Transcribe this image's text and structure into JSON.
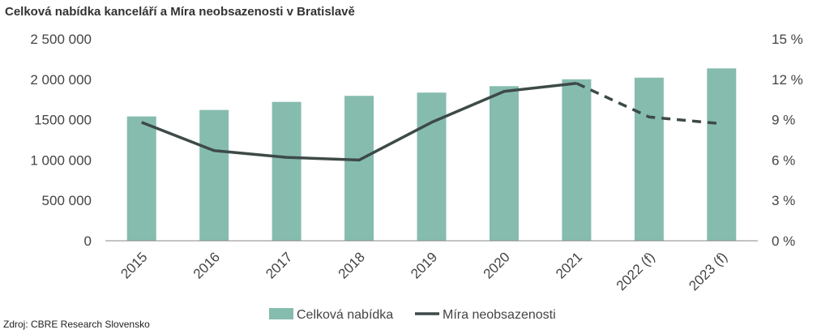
{
  "title": "Celková nabídka kanceláří a Míra neobsazenosti v Bratislavě",
  "source": "Zdroj: CBRE Research Slovensko",
  "colors": {
    "bar": "#86bcae",
    "line": "#3d4a48",
    "axis": "#888888"
  },
  "chart_data": {
    "type": "bar",
    "title": "Celková nabídka kanceláří a Míra neobsazenosti v Bratislavě",
    "categories": [
      "2015",
      "2016",
      "2017",
      "2018",
      "2019",
      "2020",
      "2021",
      "2022 (f)",
      "2023 (f)"
    ],
    "left_axis": {
      "ylim": [
        0,
        2500000
      ],
      "ticks": [
        "0",
        "500 000",
        "1 000 000",
        "1500 000",
        "2 000 000",
        "2 500 000"
      ]
    },
    "right_axis": {
      "ylim": [
        0,
        15
      ],
      "ticks": [
        "0 %",
        "3 %",
        "6 %",
        "9 %",
        "12 %",
        "15 %"
      ]
    },
    "series": [
      {
        "name": "Celková nabídka",
        "type": "bar",
        "axis": "left",
        "values": [
          1540000,
          1620000,
          1720000,
          1795000,
          1835000,
          1915000,
          2000000,
          2020000,
          2135000
        ]
      },
      {
        "name": "Míra neobsazenosti",
        "type": "line",
        "axis": "right",
        "values": [
          8.8,
          6.7,
          6.2,
          6.0,
          8.8,
          11.1,
          11.7,
          9.2,
          8.7
        ],
        "dashed_from_index": 6
      }
    ],
    "legend_placement": "bottom",
    "grid": false
  }
}
